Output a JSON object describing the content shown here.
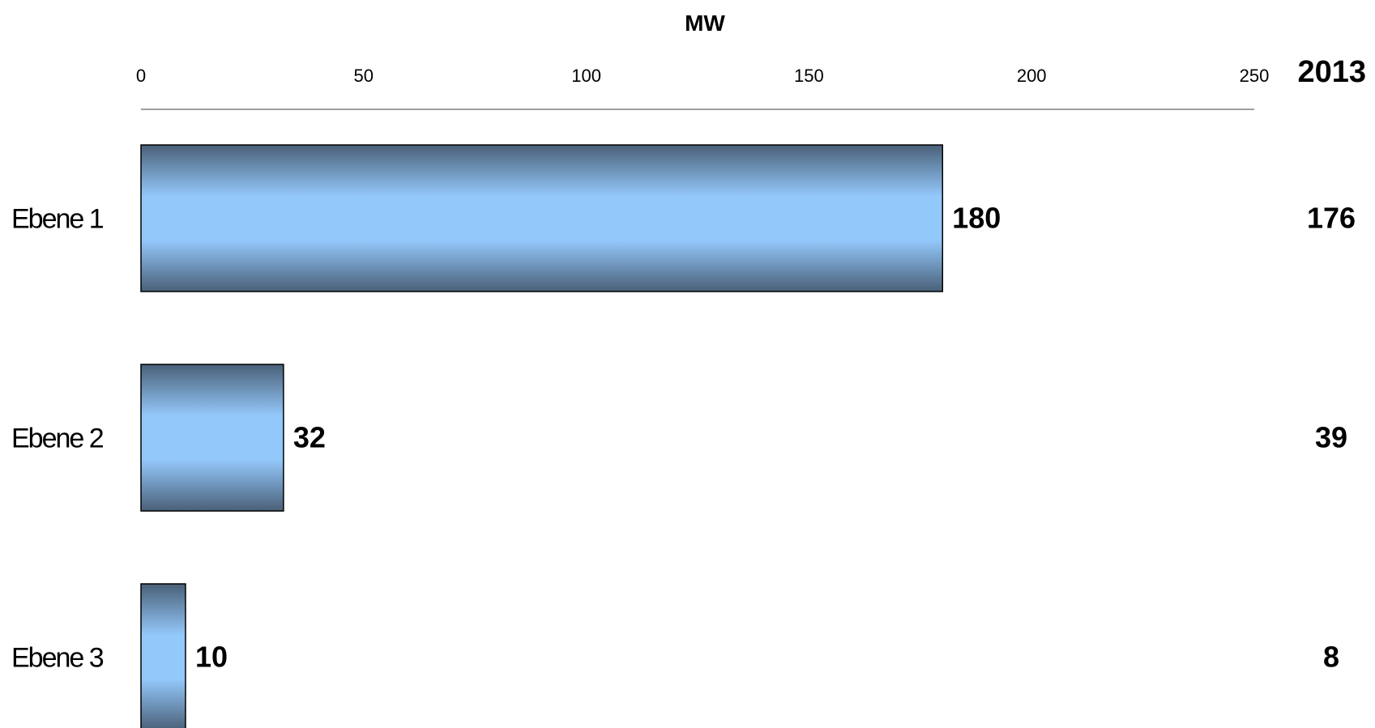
{
  "chart_data": {
    "type": "bar",
    "orientation": "horizontal",
    "xlabel": "MW",
    "xlim": [
      0,
      250
    ],
    "x_ticks": [
      "0",
      "50",
      "100",
      "150",
      "200",
      "250"
    ],
    "x_tick_values": [
      0,
      50,
      100,
      150,
      200,
      250
    ],
    "categories": [
      "Ebene 1",
      "Ebene 2",
      "Ebene 3"
    ],
    "values": [
      180,
      32,
      10
    ],
    "value_labels": [
      "180",
      "32",
      "10"
    ],
    "comparison": {
      "header": "2013",
      "values": [
        "176",
        "39",
        "8"
      ]
    },
    "grid": false,
    "bar_colors": {
      "edge": "#4a6078",
      "center": "#93c8fb",
      "outline": "#000000"
    }
  }
}
